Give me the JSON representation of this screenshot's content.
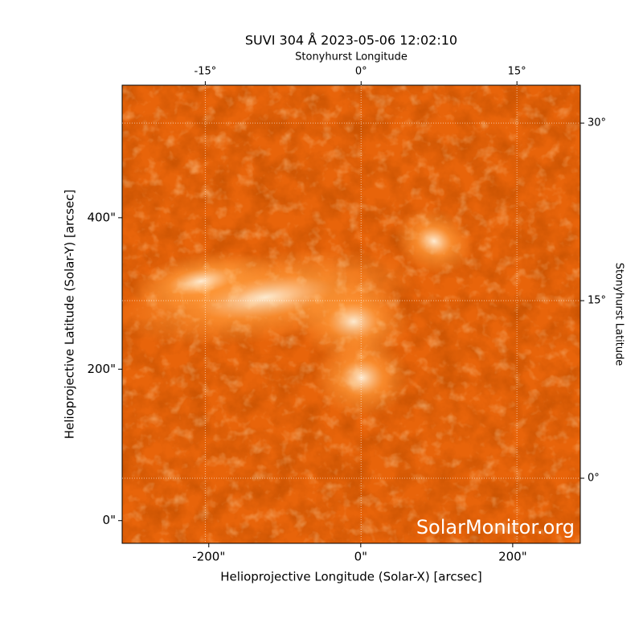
{
  "chart_data": {
    "type": "image",
    "title": "SUVI 304 Å 2023-05-06 12:02:10",
    "xlabel": "Helioprojective Longitude (Solar-X) [arcsec]",
    "ylabel": "Helioprojective Latitude (Solar-Y) [arcsec]",
    "x2label": "Stonyhurst Longitude",
    "y2label": "Stonyhurst Latitude",
    "watermark": "SolarMonitor.org",
    "xlim": [
      -314,
      289
    ],
    "ylim": [
      -30,
      575
    ],
    "xticks": [
      {
        "value": -200,
        "label": "-200\""
      },
      {
        "value": 0,
        "label": "0\""
      },
      {
        "value": 200,
        "label": "200\""
      }
    ],
    "yticks": [
      {
        "value": 0,
        "label": "0\""
      },
      {
        "value": 200,
        "label": "200\""
      },
      {
        "value": 400,
        "label": "400\""
      }
    ],
    "x2lim": [
      -23,
      21.1
    ],
    "x2ticks": [
      {
        "value": -15,
        "label": "-15°"
      },
      {
        "value": 0,
        "label": "0°"
      },
      {
        "value": 15,
        "label": "15°"
      }
    ],
    "y2lim": [
      -5.5,
      33.2
    ],
    "y2ticks": [
      {
        "value": 0,
        "label": "0°"
      },
      {
        "value": 15,
        "label": "15°"
      },
      {
        "value": 30,
        "label": "30°"
      }
    ],
    "grid": true,
    "colormap": [
      "#b33000",
      "#e8640a",
      "#ff9a3a",
      "#fff2dc"
    ]
  }
}
